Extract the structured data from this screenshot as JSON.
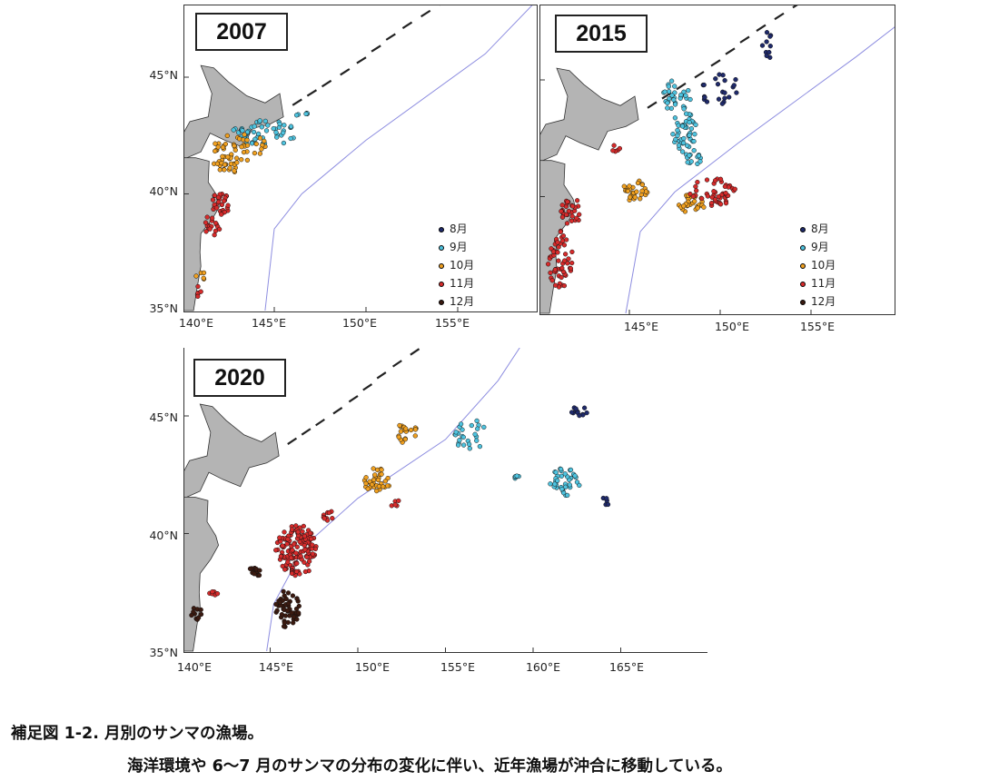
{
  "panels": [
    {
      "year": "2007"
    },
    {
      "year": "2015"
    },
    {
      "year": "2020"
    }
  ],
  "lat_ticks": [
    "45°N",
    "40°N",
    "35°N"
  ],
  "lon_ticks_top": [
    "140°E",
    "145°E",
    "150°E",
    "155°E"
  ],
  "lon_ticks_top_right": [
    "145°E",
    "150°E",
    "155°E"
  ],
  "lon_ticks_bottom": [
    "140°E",
    "145°E",
    "150°E",
    "155°E",
    "160°E",
    "165°E"
  ],
  "legend": [
    {
      "label": "8月",
      "color": "#1f2a6b"
    },
    {
      "label": "9月",
      "color": "#4ec3df"
    },
    {
      "label": "10月",
      "color": "#f0a020"
    },
    {
      "label": "11月",
      "color": "#d62b2b"
    },
    {
      "label": "12月",
      "color": "#3b1a10"
    }
  ],
  "land_color": "#b4b4b4",
  "boundary_color": "#8d8de0",
  "caption": {
    "line1": "補足図 1-2.  月別のサンマの漁場。",
    "line2": "海洋環境や 6～7 月のサンマの分布の変化に伴い、近年漁場が沖合に移動している。"
  }
}
